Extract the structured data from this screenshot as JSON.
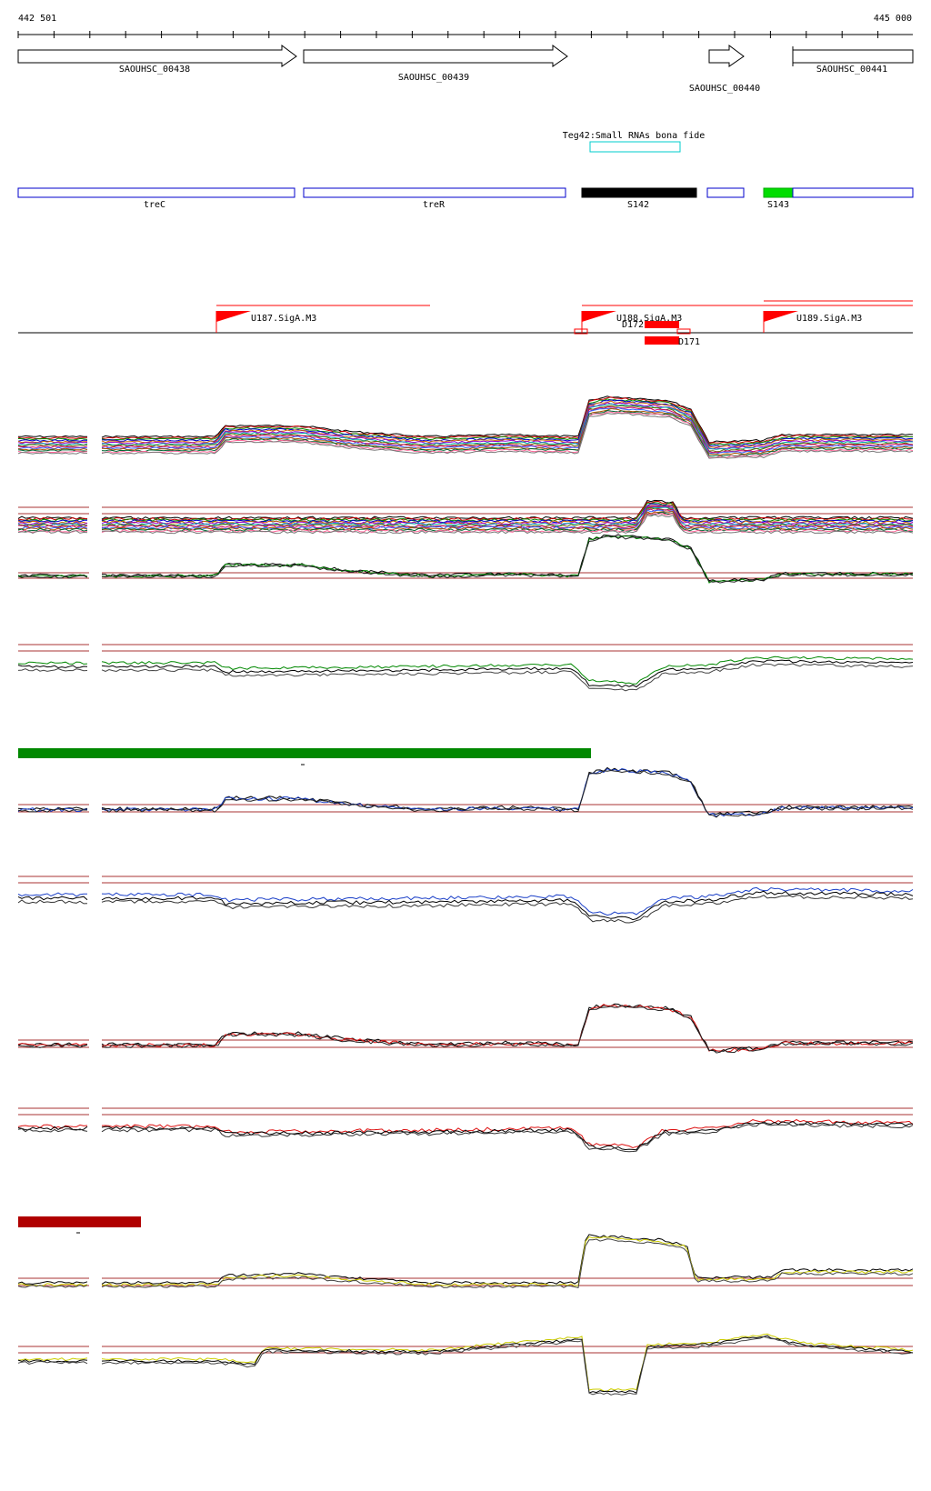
{
  "coords": {
    "start": "442 501",
    "end": "445 000"
  },
  "genes": [
    {
      "label": "SAOUHSC_00438"
    },
    {
      "label": "SAOUHSC_00439"
    },
    {
      "label": "SAOUHSC_00440"
    },
    {
      "label": "SAOUHSC_00441"
    }
  ],
  "srna": {
    "label": "Teg42:Small RNAs bona fide"
  },
  "regions": [
    {
      "label": "treC"
    },
    {
      "label": "treR"
    },
    {
      "label": "S142"
    },
    {
      "label": "S143"
    }
  ],
  "promoters": [
    {
      "label": "U187.SigA.M3"
    },
    {
      "label": "U188.SigA.M3"
    },
    {
      "label": "U189.SigA.M3"
    }
  ],
  "down_features": [
    {
      "label": "D172"
    },
    {
      "label": "D171"
    }
  ],
  "colors": {
    "gene_outline": "#000000",
    "region_outline": "#0000cc",
    "region_s142": "#000000",
    "region_s143": "#00dd00",
    "srna_box": "#00cccc",
    "promoter": "#ff0000",
    "condition_green": "#008800",
    "condition_red": "#b00000",
    "threshold": "#aa3333",
    "track_blue": "#1a3fc8",
    "track_red": "#dd1111",
    "track_yellow": "#cccc00"
  }
}
